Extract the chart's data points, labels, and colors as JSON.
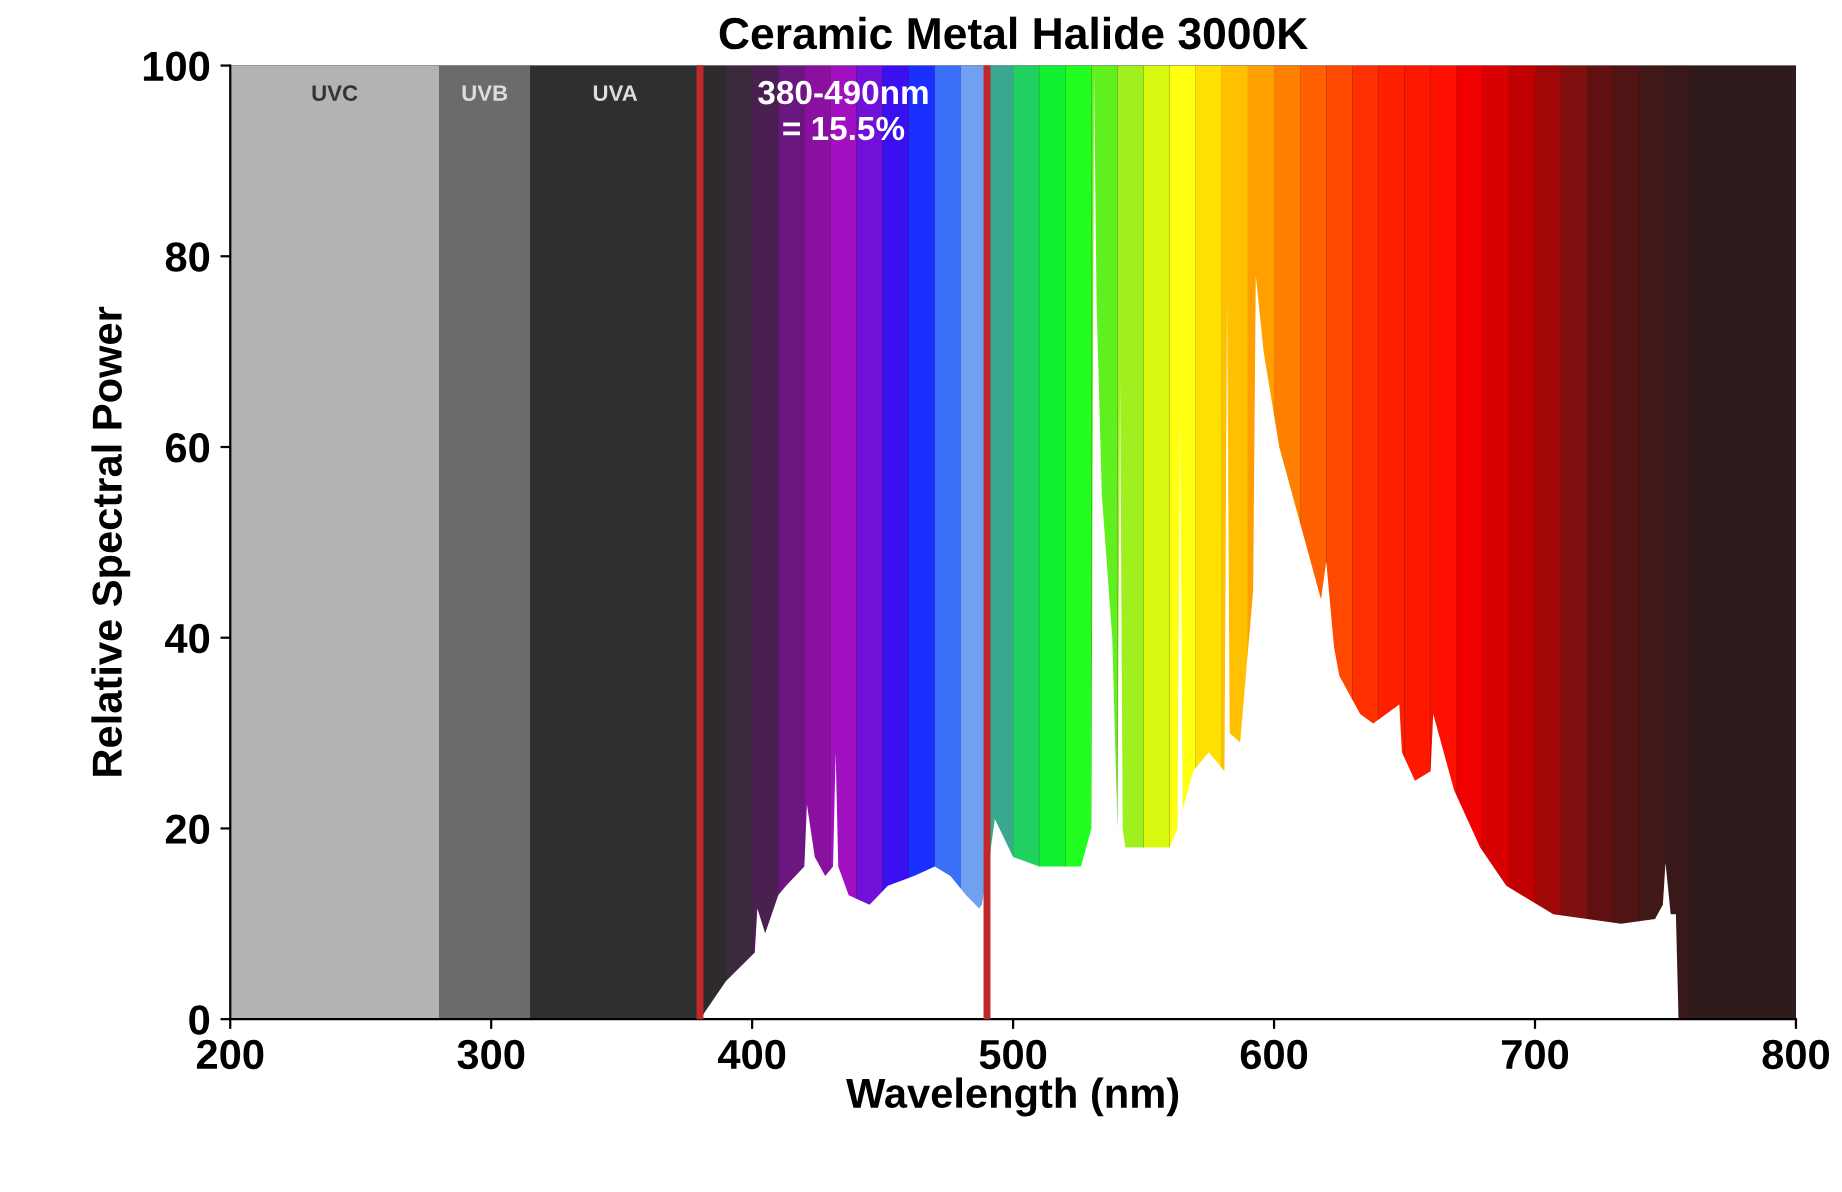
{
  "chart_data": {
    "type": "area",
    "title": "Ceramic Metal Halide 3000K",
    "xlabel": "Wavelength (nm)",
    "ylabel": "Relative Spectral Power",
    "x": [
      380,
      390,
      401,
      402,
      405,
      410,
      413,
      420,
      421,
      424,
      428,
      431,
      432,
      433,
      437,
      445,
      452,
      462,
      470,
      476,
      482,
      487,
      488,
      490,
      493,
      500,
      510,
      520,
      526,
      530,
      531,
      532,
      534,
      538,
      540,
      541,
      542,
      543,
      548,
      555,
      560,
      563,
      564,
      565,
      569,
      575,
      581,
      582,
      583,
      587,
      592,
      593,
      596,
      602,
      612,
      618,
      620,
      623,
      625,
      633,
      638,
      648,
      649,
      654,
      660,
      661,
      669,
      679,
      689,
      707,
      733,
      746,
      749,
      750,
      752,
      754,
      755
    ],
    "series": [
      {
        "color": "#ffffff",
        "values": [
          0,
          4,
          7,
          11.6,
          9,
          13,
          14,
          16,
          22.5,
          17,
          15,
          16,
          28,
          16,
          13,
          12,
          14,
          15,
          16,
          15,
          13,
          11.6,
          12,
          15,
          21,
          17,
          16,
          16,
          16,
          20,
          100,
          75,
          55,
          40,
          20,
          67,
          20,
          18,
          18,
          18,
          18,
          20,
          63,
          22,
          26,
          28,
          26,
          76,
          30,
          29,
          45,
          78,
          70,
          60,
          50,
          44,
          48,
          39,
          36,
          32,
          31,
          33,
          28,
          25,
          26,
          32,
          24,
          18,
          14,
          11,
          10,
          10.5,
          12,
          16.4,
          11,
          11,
          0
        ]
      }
    ],
    "xlim": [
      200,
      800
    ],
    "ylim": [
      0,
      100
    ],
    "xticks": [
      200,
      300,
      400,
      500,
      600,
      700,
      800
    ],
    "yticks": [
      0,
      20,
      40,
      60,
      80,
      100
    ],
    "grid": false,
    "legend": false,
    "bands": [
      {
        "axis": "x",
        "from": 200,
        "to": 280,
        "label": "UVC",
        "color": "#b3b3b3"
      },
      {
        "axis": "x",
        "from": 280,
        "to": 315,
        "label": "UVB",
        "color": "#6b6b6b"
      },
      {
        "axis": "x",
        "from": 315,
        "to": 380,
        "label": "UVA",
        "color": "#2f2f2f"
      },
      {
        "axis": "x",
        "from": 380,
        "to": 390,
        "color": "#2e2a2e"
      },
      {
        "axis": "x",
        "from": 390,
        "to": 400,
        "color": "#3a2a3c"
      },
      {
        "axis": "x",
        "from": 400,
        "to": 410,
        "color": "#4a2050"
      },
      {
        "axis": "x",
        "from": 410,
        "to": 420,
        "color": "#6a1880"
      },
      {
        "axis": "x",
        "from": 420,
        "to": 430,
        "color": "#8a10a0"
      },
      {
        "axis": "x",
        "from": 430,
        "to": 440,
        "color": "#a010c0"
      },
      {
        "axis": "x",
        "from": 440,
        "to": 450,
        "color": "#7010d8"
      },
      {
        "axis": "x",
        "from": 450,
        "to": 460,
        "color": "#3a10f0"
      },
      {
        "axis": "x",
        "from": 460,
        "to": 470,
        "color": "#1a30ff"
      },
      {
        "axis": "x",
        "from": 470,
        "to": 480,
        "color": "#3a70f8"
      },
      {
        "axis": "x",
        "from": 480,
        "to": 490,
        "color": "#70a0f0"
      },
      {
        "axis": "x",
        "from": 490,
        "to": 500,
        "color": "#3aa890"
      },
      {
        "axis": "x",
        "from": 500,
        "to": 510,
        "color": "#20d060"
      },
      {
        "axis": "x",
        "from": 510,
        "to": 520,
        "color": "#10f030"
      },
      {
        "axis": "x",
        "from": 520,
        "to": 530,
        "color": "#20ff20"
      },
      {
        "axis": "x",
        "from": 530,
        "to": 540,
        "color": "#60f020"
      },
      {
        "axis": "x",
        "from": 540,
        "to": 550,
        "color": "#a0f020"
      },
      {
        "axis": "x",
        "from": 550,
        "to": 560,
        "color": "#d8f810"
      },
      {
        "axis": "x",
        "from": 560,
        "to": 570,
        "color": "#ffff10"
      },
      {
        "axis": "x",
        "from": 570,
        "to": 580,
        "color": "#ffe000"
      },
      {
        "axis": "x",
        "from": 580,
        "to": 590,
        "color": "#ffc000"
      },
      {
        "axis": "x",
        "from": 590,
        "to": 600,
        "color": "#ffa000"
      },
      {
        "axis": "x",
        "from": 600,
        "to": 610,
        "color": "#ff8000"
      },
      {
        "axis": "x",
        "from": 610,
        "to": 620,
        "color": "#ff6000"
      },
      {
        "axis": "x",
        "from": 620,
        "to": 630,
        "color": "#ff4800"
      },
      {
        "axis": "x",
        "from": 630,
        "to": 640,
        "color": "#ff3000"
      },
      {
        "axis": "x",
        "from": 640,
        "to": 650,
        "color": "#ff2000"
      },
      {
        "axis": "x",
        "from": 650,
        "to": 660,
        "color": "#ff1800"
      },
      {
        "axis": "x",
        "from": 660,
        "to": 670,
        "color": "#ff1000"
      },
      {
        "axis": "x",
        "from": 670,
        "to": 680,
        "color": "#f00000"
      },
      {
        "axis": "x",
        "from": 680,
        "to": 690,
        "color": "#d80000"
      },
      {
        "axis": "x",
        "from": 690,
        "to": 700,
        "color": "#c00000"
      },
      {
        "axis": "x",
        "from": 700,
        "to": 710,
        "color": "#a00808"
      },
      {
        "axis": "x",
        "from": 710,
        "to": 720,
        "color": "#801010"
      },
      {
        "axis": "x",
        "from": 720,
        "to": 730,
        "color": "#601010"
      },
      {
        "axis": "x",
        "from": 730,
        "to": 740,
        "color": "#501414"
      },
      {
        "axis": "x",
        "from": 740,
        "to": 750,
        "color": "#401818"
      },
      {
        "axis": "x",
        "from": 750,
        "to": 760,
        "color": "#381818"
      },
      {
        "axis": "x",
        "from": 760,
        "to": 800,
        "color": "#2e1c1c"
      }
    ],
    "ref_lines": [
      {
        "axis": "x",
        "value": 380,
        "color": "#c0282a"
      },
      {
        "axis": "x",
        "value": 490,
        "color": "#c0282a"
      }
    ],
    "annotations": [
      "380-490nm\n= 15.5%"
    ]
  }
}
